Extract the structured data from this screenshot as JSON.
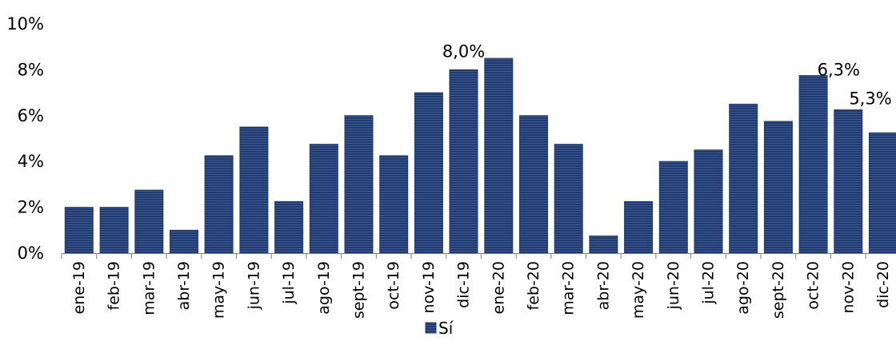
{
  "chart_data": {
    "type": "bar",
    "categories": [
      "ene-19",
      "feb-19",
      "mar-19",
      "abr-19",
      "may-19",
      "jun-19",
      "jul-19",
      "ago-19",
      "sept-19",
      "oct-19",
      "nov-19",
      "dic-19",
      "ene-20",
      "feb-20",
      "mar-20",
      "abr-20",
      "may-20",
      "jun-20",
      "jul-20",
      "ago-20",
      "sept-20",
      "oct-20",
      "nov-20",
      "dic-20"
    ],
    "series": [
      {
        "name": "Sí",
        "color": "#1f3a6e",
        "values": [
          2.0,
          2.0,
          2.75,
          1.0,
          4.25,
          5.5,
          2.25,
          4.75,
          6.0,
          4.25,
          7.0,
          8.0,
          8.5,
          6.0,
          4.75,
          0.75,
          2.25,
          4.0,
          4.5,
          6.5,
          5.75,
          7.75,
          6.25,
          5.25
        ]
      }
    ],
    "y_ticks": [
      "0%",
      "2%",
      "4%",
      "6%",
      "8%",
      "10%"
    ],
    "ylim": [
      0,
      10
    ],
    "y_unit": "%",
    "data_labels": [
      {
        "category": "dic-19",
        "text": "8,0%"
      },
      {
        "category": "nov-20",
        "text": "6,3%"
      },
      {
        "category": "dic-20",
        "text": "5,3%"
      }
    ],
    "legend": {
      "position": "bottom-center",
      "entries": [
        "Sí"
      ]
    },
    "grid": false,
    "title": "",
    "xlabel": "",
    "ylabel": ""
  }
}
